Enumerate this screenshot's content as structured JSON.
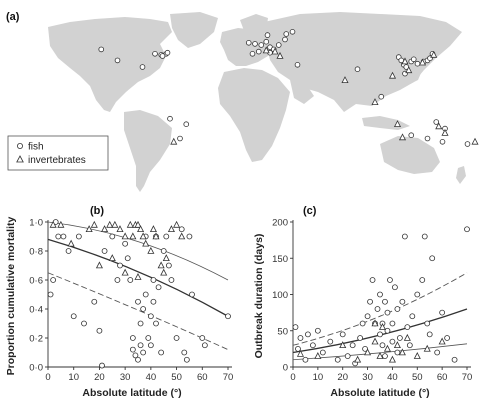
{
  "labels": {
    "a": "(a)",
    "b": "(b)",
    "c": "(c)"
  },
  "legend": {
    "fish": "fish",
    "invertebrates": "invertebrates"
  },
  "colors": {
    "land": "#d2d2d2",
    "ink": "#333333"
  },
  "map_sites": {
    "fish": [
      [
        -123,
        46
      ],
      [
        -110,
        36
      ],
      [
        -80,
        42
      ],
      [
        -75,
        41
      ],
      [
        -71,
        42
      ],
      [
        -70,
        43
      ],
      [
        -74,
        40
      ],
      [
        -90,
        30
      ],
      [
        -60,
        -35
      ],
      [
        -55,
        -22
      ],
      [
        -68,
        -17
      ],
      [
        -5,
        52
      ],
      [
        0,
        51
      ],
      [
        5,
        50
      ],
      [
        9,
        53
      ],
      [
        12,
        48
      ],
      [
        15,
        46
      ],
      [
        19,
        50
      ],
      [
        24,
        55
      ],
      [
        25,
        60
      ],
      [
        30,
        62
      ],
      [
        10,
        59
      ],
      [
        -2,
        42
      ],
      [
        3,
        44
      ],
      [
        12,
        43
      ],
      [
        34,
        32
      ],
      [
        82,
        28
      ],
      [
        101,
        3
      ],
      [
        115,
        39
      ],
      [
        117,
        36
      ],
      [
        119,
        32
      ],
      [
        121,
        30
      ],
      [
        125,
        35
      ],
      [
        127,
        37
      ],
      [
        130,
        33
      ],
      [
        135,
        35
      ],
      [
        138,
        36
      ],
      [
        140,
        38
      ],
      [
        142,
        42
      ],
      [
        120,
        24
      ],
      [
        145,
        -20
      ],
      [
        125,
        -32
      ],
      [
        152,
        -26
      ],
      [
        150,
        -38
      ],
      [
        138,
        -35
      ],
      [
        170,
        -40
      ]
    ],
    "invertebrates": [
      [
        -65,
        -38
      ],
      [
        9,
        45
      ],
      [
        16,
        44
      ],
      [
        20,
        40
      ],
      [
        120,
        35
      ],
      [
        134,
        34
      ],
      [
        72,
        18
      ],
      [
        110,
        22
      ],
      [
        114,
        -22
      ],
      [
        118,
        -34
      ],
      [
        147,
        -24
      ],
      [
        152,
        -30
      ],
      [
        176,
        -38
      ],
      [
        143,
        41
      ],
      [
        123,
        27
      ],
      [
        96,
        -2
      ]
    ]
  },
  "chart_data": [
    {
      "type": "scatter",
      "title": "(b)",
      "xlabel": "Absolute latitude (°)",
      "ylabel": "Proportion cumulative mortality",
      "xlim": [
        0,
        70
      ],
      "ylim": [
        0,
        1
      ],
      "xticks": [
        "0",
        "10",
        "20",
        "30",
        "40",
        "50",
        "60",
        "70"
      ],
      "yticks": [
        "0·0",
        "0·2",
        "0·4",
        "0·6",
        "0·8",
        "1·0"
      ],
      "series": [
        {
          "marker": "circle",
          "points": [
            [
              1,
              0.5
            ],
            [
              2,
              0.6
            ],
            [
              3,
              1.0
            ],
            [
              4,
              0.9
            ],
            [
              6,
              0.9
            ],
            [
              8,
              0.8
            ],
            [
              10,
              0.35
            ],
            [
              12,
              0.9
            ],
            [
              14,
              0.3
            ],
            [
              18,
              0.45
            ],
            [
              20,
              0.25
            ],
            [
              21,
              0.01
            ],
            [
              22,
              0.8
            ],
            [
              25,
              0.9
            ],
            [
              27,
              0.6
            ],
            [
              28,
              0.7
            ],
            [
              30,
              0.85
            ],
            [
              31,
              0.75
            ],
            [
              32,
              0.6
            ],
            [
              33,
              0.2
            ],
            [
              33,
              0.12
            ],
            [
              34,
              0.08
            ],
            [
              35,
              0.05
            ],
            [
              35,
              0.45
            ],
            [
              36,
              0.15
            ],
            [
              36,
              0.3
            ],
            [
              37,
              0.4
            ],
            [
              37,
              0.1
            ],
            [
              38,
              0.9
            ],
            [
              38,
              0.5
            ],
            [
              39,
              0.2
            ],
            [
              40,
              0.35
            ],
            [
              40,
              0.15
            ],
            [
              41,
              0.45
            ],
            [
              41,
              0.6
            ],
            [
              42,
              0.3
            ],
            [
              42,
              0.9
            ],
            [
              43,
              0.55
            ],
            [
              44,
              0.1
            ],
            [
              45,
              0.8
            ],
            [
              46,
              0.9
            ],
            [
              47,
              0.7
            ],
            [
              48,
              0.6
            ],
            [
              50,
              0.2
            ],
            [
              52,
              0.95
            ],
            [
              53,
              0.1
            ],
            [
              54,
              0.05
            ],
            [
              55,
              0.9
            ],
            [
              56,
              0.5
            ],
            [
              60,
              0.2
            ],
            [
              61,
              0.15
            ],
            [
              70,
              0.35
            ]
          ]
        },
        {
          "marker": "triangle",
          "points": [
            [
              2,
              0.98
            ],
            [
              5,
              0.98
            ],
            [
              9,
              0.85
            ],
            [
              16,
              0.95
            ],
            [
              18,
              0.98
            ],
            [
              22,
              0.95
            ],
            [
              24,
              0.98
            ],
            [
              26,
              0.98
            ],
            [
              28,
              0.95
            ],
            [
              30,
              0.9
            ],
            [
              32,
              0.98
            ],
            [
              33,
              0.9
            ],
            [
              34,
              0.98
            ],
            [
              35,
              0.98
            ],
            [
              36,
              0.95
            ],
            [
              37,
              0.9
            ],
            [
              38,
              0.85
            ],
            [
              40,
              0.8
            ],
            [
              41,
              0.95
            ],
            [
              42,
              0.9
            ],
            [
              44,
              0.7
            ],
            [
              46,
              0.75
            ],
            [
              48,
              0.95
            ],
            [
              50,
              0.98
            ],
            [
              52,
              0.9
            ],
            [
              20,
              0.7
            ],
            [
              25,
              0.75
            ],
            [
              30,
              0.65
            ],
            [
              35,
              0.62
            ],
            [
              45,
              0.65
            ]
          ]
        }
      ],
      "lines": [
        {
          "style": "solid",
          "x": [
            0,
            35,
            70
          ],
          "y": [
            0.88,
            0.7,
            0.35
          ]
        },
        {
          "style": "thin",
          "x": [
            0,
            35,
            70
          ],
          "y": [
            1.0,
            0.93,
            0.6
          ]
        },
        {
          "style": "dashed",
          "x": [
            0,
            35,
            70
          ],
          "y": [
            0.65,
            0.4,
            0.12
          ]
        }
      ]
    },
    {
      "type": "scatter",
      "title": "(c)",
      "xlabel": "Absolute latitude (°)",
      "ylabel": "Outbreak duration (days)",
      "xlim": [
        0,
        70
      ],
      "ylim": [
        0,
        200
      ],
      "xticks": [
        "0",
        "10",
        "20",
        "30",
        "40",
        "50",
        "60",
        "70"
      ],
      "yticks": [
        "0",
        "50",
        "100",
        "150",
        "200"
      ],
      "series": [
        {
          "marker": "circle",
          "points": [
            [
              1,
              55
            ],
            [
              2,
              25
            ],
            [
              3,
              40
            ],
            [
              5,
              10
            ],
            [
              6,
              45
            ],
            [
              8,
              30
            ],
            [
              10,
              50
            ],
            [
              12,
              20
            ],
            [
              15,
              35
            ],
            [
              18,
              10
            ],
            [
              20,
              45
            ],
            [
              22,
              15
            ],
            [
              24,
              30
            ],
            [
              25,
              5
            ],
            [
              27,
              40
            ],
            [
              28,
              60
            ],
            [
              29,
              25
            ],
            [
              30,
              70
            ],
            [
              31,
              90
            ],
            [
              32,
              120
            ],
            [
              33,
              60
            ],
            [
              34,
              80
            ],
            [
              35,
              45
            ],
            [
              35,
              100
            ],
            [
              36,
              30
            ],
            [
              36,
              60
            ],
            [
              37,
              90
            ],
            [
              37,
              15
            ],
            [
              38,
              75
            ],
            [
              38,
              50
            ],
            [
              39,
              120
            ],
            [
              40,
              35
            ],
            [
              40,
              60
            ],
            [
              41,
              110
            ],
            [
              42,
              80
            ],
            [
              42,
              20
            ],
            [
              43,
              40
            ],
            [
              44,
              90
            ],
            [
              45,
              180
            ],
            [
              46,
              55
            ],
            [
              47,
              30
            ],
            [
              48,
              70
            ],
            [
              50,
              100
            ],
            [
              52,
              120
            ],
            [
              53,
              180
            ],
            [
              54,
              60
            ],
            [
              55,
              45
            ],
            [
              56,
              150
            ],
            [
              58,
              20
            ],
            [
              60,
              75
            ],
            [
              62,
              40
            ],
            [
              65,
              10
            ],
            [
              70,
              190
            ]
          ]
        },
        {
          "marker": "triangle",
          "points": [
            [
              3,
              18
            ],
            [
              10,
              15
            ],
            [
              20,
              30
            ],
            [
              26,
              10
            ],
            [
              30,
              20
            ],
            [
              33,
              35
            ],
            [
              35,
              15
            ],
            [
              38,
              25
            ],
            [
              40,
              10
            ],
            [
              42,
              30
            ],
            [
              44,
              20
            ],
            [
              46,
              40
            ],
            [
              50,
              15
            ],
            [
              54,
              25
            ],
            [
              60,
              35
            ],
            [
              33,
              60
            ],
            [
              36,
              55
            ]
          ]
        }
      ],
      "lines": [
        {
          "style": "solid",
          "x": [
            0,
            35,
            70
          ],
          "y": [
            20,
            38,
            80
          ]
        },
        {
          "style": "dashed",
          "x": [
            0,
            35,
            70
          ],
          "y": [
            30,
            60,
            130
          ]
        },
        {
          "style": "thin",
          "x": [
            0,
            35,
            70
          ],
          "y": [
            10,
            18,
            32
          ]
        }
      ]
    }
  ]
}
